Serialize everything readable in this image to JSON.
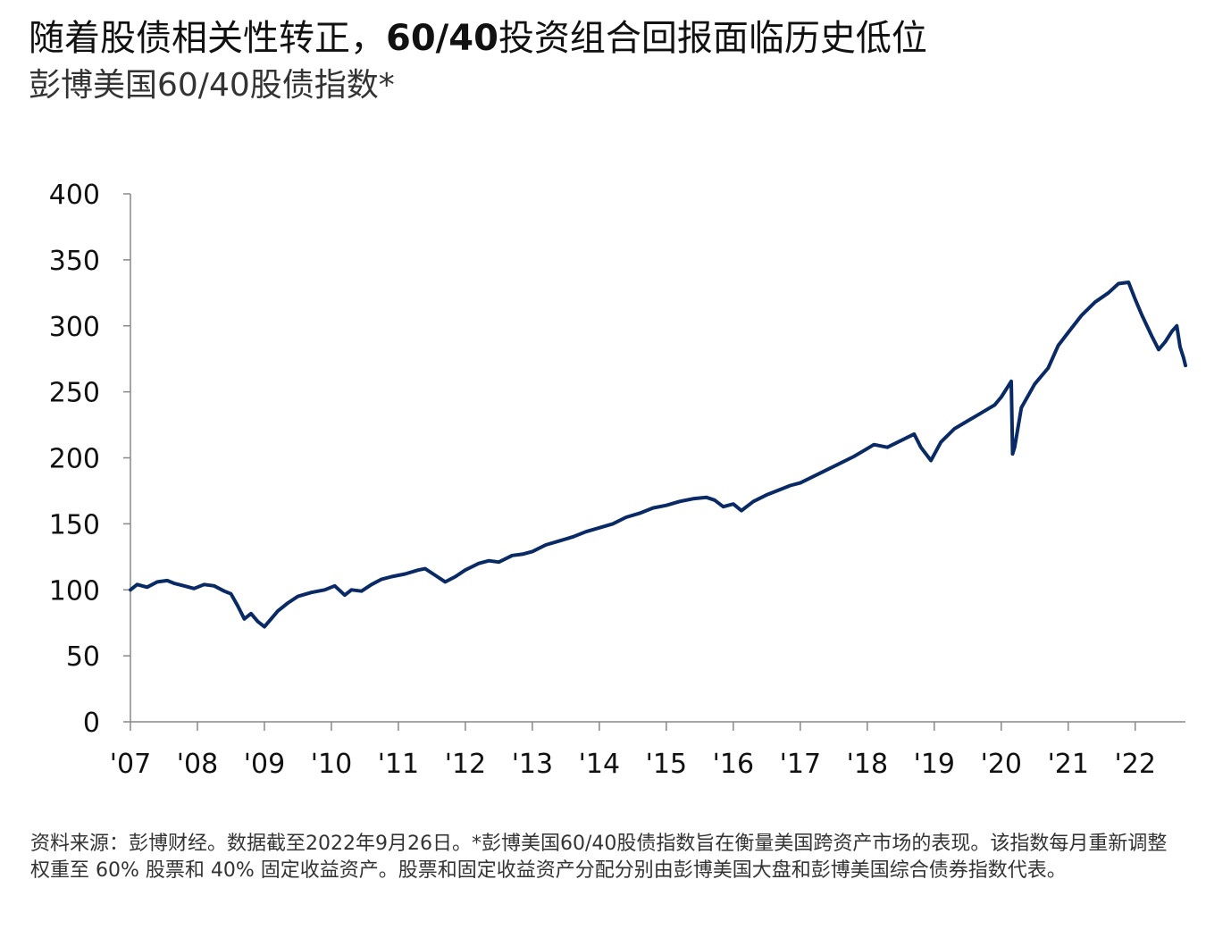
{
  "title": {
    "part1": "随着股债相关性转正，",
    "part2": "60/40",
    "part3": "投资组合回报面临历史低位"
  },
  "subtitle": "彭博美国60/40股债指数*",
  "footnote": "资料来源：彭博财经。数据截至2022年9月26日。*彭博美国60/40股债指数旨在衡量美国跨资产市场的表现。该指数每月重新调整权重至 60% 股票和 40% 固定收益资产。股票和固定收益资产分配分别由彭博美国大盘和彭博美国综合债券指数代表。",
  "colors": {
    "series": "#0a2a66",
    "axis": "#888888"
  },
  "chart_data": {
    "type": "line",
    "title": "彭博美国60/40股债指数*",
    "xlabel": "",
    "ylabel": "",
    "ylim": [
      0,
      400
    ],
    "xlim": [
      2007.0,
      2022.75
    ],
    "yticks": [
      0,
      50,
      100,
      150,
      200,
      250,
      300,
      350,
      400
    ],
    "xticks": [
      {
        "value": 2007,
        "label": "'07"
      },
      {
        "value": 2008,
        "label": "'08"
      },
      {
        "value": 2009,
        "label": "'09"
      },
      {
        "value": 2010,
        "label": "'10"
      },
      {
        "value": 2011,
        "label": "'11"
      },
      {
        "value": 2012,
        "label": "'12"
      },
      {
        "value": 2013,
        "label": "'13"
      },
      {
        "value": 2014,
        "label": "'14"
      },
      {
        "value": 2015,
        "label": "'15"
      },
      {
        "value": 2016,
        "label": "'16"
      },
      {
        "value": 2017,
        "label": "'17"
      },
      {
        "value": 2018,
        "label": "'18"
      },
      {
        "value": 2019,
        "label": "'19"
      },
      {
        "value": 2020,
        "label": "'20"
      },
      {
        "value": 2021,
        "label": "'21"
      },
      {
        "value": 2022,
        "label": "'22"
      }
    ],
    "grid": false,
    "legend": "none",
    "series": [
      {
        "x": [
          2007.0,
          2007.1,
          2007.25,
          2007.4,
          2007.55,
          2007.65,
          2007.8,
          2007.95,
          2008.1,
          2008.25,
          2008.4,
          2008.5,
          2008.6,
          2008.7,
          2008.8,
          2008.9,
          2009.0,
          2009.1,
          2009.2,
          2009.35,
          2009.5,
          2009.7,
          2009.9,
          2010.05,
          2010.2,
          2010.3,
          2010.45,
          2010.6,
          2010.75,
          2010.9,
          2011.1,
          2011.3,
          2011.4,
          2011.55,
          2011.7,
          2011.85,
          2012.0,
          2012.2,
          2012.35,
          2012.5,
          2012.7,
          2012.85,
          2013.0,
          2013.2,
          2013.4,
          2013.6,
          2013.8,
          2014.0,
          2014.2,
          2014.4,
          2014.6,
          2014.8,
          2015.0,
          2015.2,
          2015.4,
          2015.6,
          2015.72,
          2015.85,
          2016.0,
          2016.12,
          2016.3,
          2016.5,
          2016.7,
          2016.85,
          2017.0,
          2017.2,
          2017.4,
          2017.6,
          2017.8,
          2018.0,
          2018.1,
          2018.3,
          2018.5,
          2018.7,
          2018.8,
          2018.95,
          2019.1,
          2019.3,
          2019.5,
          2019.7,
          2019.9,
          2020.0,
          2020.1,
          2020.15,
          2020.17,
          2020.2,
          2020.3,
          2020.5,
          2020.7,
          2020.85,
          2021.0,
          2021.2,
          2021.4,
          2021.6,
          2021.75,
          2021.9,
          2022.0,
          2022.1,
          2022.25,
          2022.35,
          2022.45,
          2022.55,
          2022.62,
          2022.67,
          2022.72,
          2022.75
        ],
        "values": [
          100,
          104,
          102,
          106,
          107,
          105,
          103,
          101,
          104,
          103,
          99,
          97,
          88,
          78,
          82,
          76,
          72,
          78,
          84,
          90,
          95,
          98,
          100,
          103,
          96,
          100,
          99,
          104,
          108,
          110,
          112,
          115,
          116,
          111,
          106,
          110,
          115,
          120,
          122,
          121,
          126,
          127,
          129,
          134,
          137,
          140,
          144,
          147,
          150,
          155,
          158,
          162,
          164,
          167,
          169,
          170,
          168,
          163,
          165,
          160,
          167,
          172,
          176,
          179,
          181,
          186,
          191,
          196,
          201,
          207,
          210,
          208,
          213,
          218,
          208,
          198,
          212,
          222,
          228,
          234,
          240,
          246,
          254,
          258,
          203,
          208,
          238,
          256,
          268,
          285,
          295,
          308,
          318,
          325,
          332,
          333,
          320,
          308,
          292,
          282,
          288,
          296,
          300,
          284,
          276,
          270
        ]
      }
    ]
  }
}
